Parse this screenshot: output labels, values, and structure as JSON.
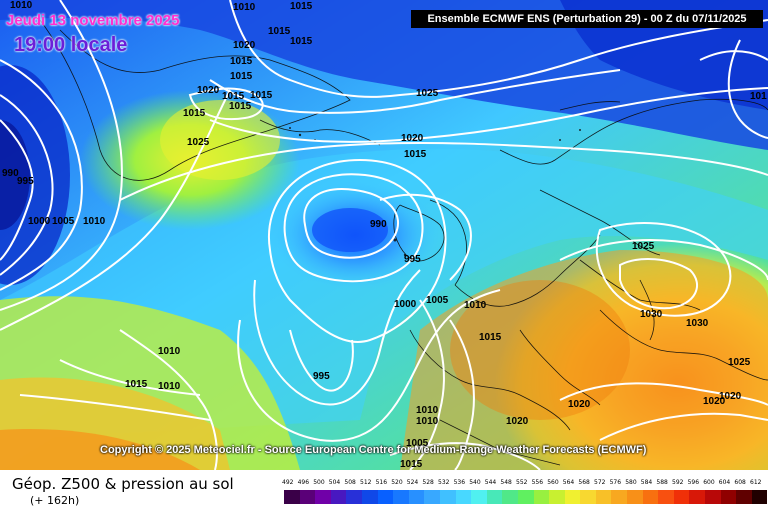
{
  "header": {
    "date": "Jeudi 13 novembre 2025",
    "local_time": "19:00 locale",
    "run_info": "Ensemble ECMWF ENS  (Perturbation 29)  - 00 Z du 07/11/2025"
  },
  "copyright": "Copyright © 2025 Meteociel.fr - Source European Centre for Medium-Range Weather Forecasts (ECMWF)",
  "footer": {
    "title": "Géop. Z500 & pression au sol",
    "subtitle": "(+ 162h)"
  },
  "legend": {
    "values": [
      "492",
      "496",
      "500",
      "504",
      "508",
      "512",
      "516",
      "520",
      "524",
      "528",
      "532",
      "536",
      "540",
      "544",
      "548",
      "552",
      "556",
      "560",
      "564",
      "568",
      "572",
      "576",
      "580",
      "584",
      "588",
      "592",
      "596",
      "600",
      "604",
      "608",
      "612"
    ],
    "colors": [
      "#3a0048",
      "#5a0078",
      "#7000a8",
      "#4818c0",
      "#2830d8",
      "#1048e8",
      "#0860ff",
      "#1878ff",
      "#2890ff",
      "#38a8ff",
      "#40c0ff",
      "#48d8ff",
      "#50f0f0",
      "#48e8b8",
      "#50e888",
      "#60f060",
      "#98f040",
      "#c8f030",
      "#f0f030",
      "#f8d830",
      "#f8c028",
      "#f8a820",
      "#f89018",
      "#f87010",
      "#f85010",
      "#f03008",
      "#d81808",
      "#b80808",
      "#900000",
      "#600000",
      "#200000"
    ]
  },
  "isobar_labels": [
    "1010",
    "1015",
    "1015",
    "1015",
    "1020",
    "1015",
    "1015",
    "1020",
    "1015",
    "1015",
    "1015",
    "1025",
    "1020",
    "1015",
    "1025",
    "990",
    "995",
    "1000",
    "1005",
    "1010",
    "990",
    "995",
    "1000",
    "1005",
    "1010",
    "1015",
    "1010",
    "1015",
    "1010",
    "995",
    "1025",
    "1030",
    "1030",
    "1025",
    "1020",
    "1020",
    "1020",
    "1010",
    "1010",
    "1015",
    "1015",
    "1010",
    "1005",
    "1015",
    "101"
  ],
  "colors": {
    "isobar": "#ffffff",
    "deep_blue": "#0818c8",
    "warm_orange": "#f89a20"
  }
}
